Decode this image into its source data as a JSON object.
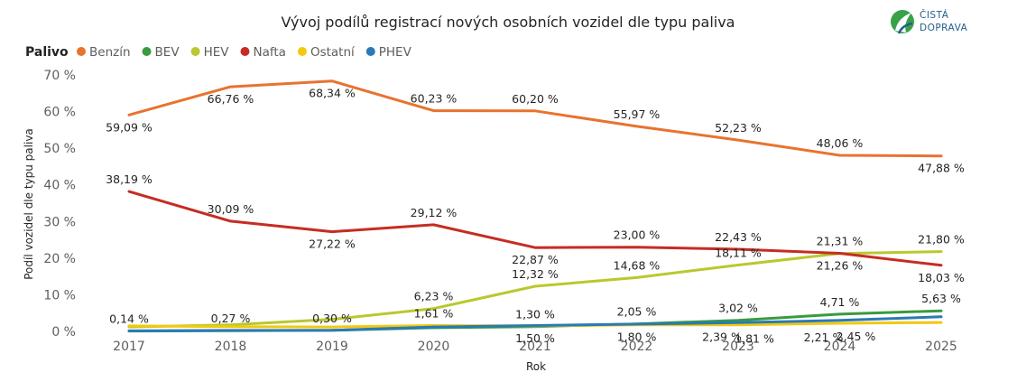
{
  "logo": {
    "line1": "ČISTÁ",
    "line2": "DOPRAVA"
  },
  "chart_data": {
    "type": "line",
    "title": "Vývoj podílů registrací nových osobních vozidel dle typu paliva",
    "xlabel": "Rok",
    "ylabel": "Podíl vozidel dle typu paliva",
    "legend_title": "Palivo",
    "legend_position": "top-left",
    "grid": false,
    "ylim": [
      0,
      70
    ],
    "y_ticks": [
      "0 %",
      "10 %",
      "20 %",
      "30 %",
      "40 %",
      "50 %",
      "60 %",
      "70 %"
    ],
    "categories": [
      "2017",
      "2018",
      "2019",
      "2020",
      "2021",
      "2022",
      "2023",
      "2024",
      "2025"
    ],
    "series": [
      {
        "name": "Benzín",
        "color": "#E8732F",
        "values": [
          59.09,
          66.76,
          68.34,
          60.23,
          60.2,
          55.97,
          52.23,
          48.06,
          47.88
        ]
      },
      {
        "name": "BEV",
        "color": "#3A9A3E",
        "values": [
          0.1,
          0.2,
          0.3,
          1.0,
          1.3,
          2.05,
          3.02,
          4.71,
          5.63
        ]
      },
      {
        "name": "HEV",
        "color": "#B9C82E",
        "values": [
          1.2,
          1.8,
          3.3,
          6.23,
          12.32,
          14.68,
          18.11,
          21.26,
          21.8
        ]
      },
      {
        "name": "Nafta",
        "color": "#C62C24",
        "values": [
          38.19,
          30.09,
          27.22,
          29.12,
          22.87,
          23.0,
          22.43,
          21.31,
          18.03
        ]
      },
      {
        "name": "Ostatní",
        "color": "#F2C811",
        "values": [
          1.5,
          1.3,
          1.2,
          1.61,
          1.5,
          1.8,
          1.81,
          2.21,
          2.45
        ]
      },
      {
        "name": "PHEV",
        "color": "#2A7AB8",
        "values": [
          0.14,
          0.27,
          0.3,
          1.2,
          1.6,
          2.0,
          2.39,
          3.0,
          4.0
        ]
      }
    ],
    "data_labels": [
      {
        "text": "59,09 %",
        "year": "2017",
        "value": 59.09,
        "place": "below"
      },
      {
        "text": "66,76 %",
        "year": "2018",
        "value": 66.76,
        "place": "below"
      },
      {
        "text": "68,34 %",
        "year": "2019",
        "value": 68.34,
        "place": "below"
      },
      {
        "text": "60,23 %",
        "year": "2020",
        "value": 60.23,
        "place": "above"
      },
      {
        "text": "60,20 %",
        "year": "2021",
        "value": 60.2,
        "place": "above"
      },
      {
        "text": "55,97 %",
        "year": "2022",
        "value": 55.97,
        "place": "above"
      },
      {
        "text": "52,23 %",
        "year": "2023",
        "value": 52.23,
        "place": "above"
      },
      {
        "text": "48,06 %",
        "year": "2024",
        "value": 48.06,
        "place": "above"
      },
      {
        "text": "47,88 %",
        "year": "2025",
        "value": 47.88,
        "place": "below"
      },
      {
        "text": "38,19 %",
        "year": "2017",
        "value": 38.19,
        "place": "above"
      },
      {
        "text": "30,09 %",
        "year": "2018",
        "value": 30.09,
        "place": "above"
      },
      {
        "text": "27,22 %",
        "year": "2019",
        "value": 27.22,
        "place": "below"
      },
      {
        "text": "29,12 %",
        "year": "2020",
        "value": 29.12,
        "place": "above"
      },
      {
        "text": "22,87 %",
        "year": "2021",
        "value": 22.87,
        "place": "below"
      },
      {
        "text": "23,00 %",
        "year": "2022",
        "value": 23.0,
        "place": "above"
      },
      {
        "text": "22,43 %",
        "year": "2023",
        "value": 22.43,
        "place": "above"
      },
      {
        "text": "21,31 %",
        "year": "2024",
        "value": 21.31,
        "place": "above"
      },
      {
        "text": "18,03 %",
        "year": "2025",
        "value": 18.03,
        "place": "below"
      },
      {
        "text": "12,32 %",
        "year": "2021",
        "value": 12.32,
        "place": "above"
      },
      {
        "text": "14,68 %",
        "year": "2022",
        "value": 14.68,
        "place": "above"
      },
      {
        "text": "18,11 %",
        "year": "2023",
        "value": 18.11,
        "place": "above"
      },
      {
        "text": "21,26 %",
        "year": "2024",
        "value": 21.26,
        "place": "below"
      },
      {
        "text": "21,80 %",
        "year": "2025",
        "value": 21.8,
        "place": "above"
      },
      {
        "text": "6,23 %",
        "year": "2020",
        "value": 6.23,
        "place": "above"
      },
      {
        "text": "0,14 %",
        "year": "2017",
        "value": 0.14,
        "place": "above"
      },
      {
        "text": "0,27 %",
        "year": "2018",
        "value": 0.27,
        "place": "above"
      },
      {
        "text": "0,30 %",
        "year": "2019",
        "value": 0.3,
        "place": "above"
      },
      {
        "text": "1,61 %",
        "year": "2020",
        "value": 1.61,
        "place": "above"
      },
      {
        "text": "1,30 %",
        "year": "2021",
        "value": 1.3,
        "place": "above"
      },
      {
        "text": "1,50 %",
        "year": "2021",
        "value": 1.5,
        "place": "below"
      },
      {
        "text": "2,05 %",
        "year": "2022",
        "value": 2.05,
        "place": "above"
      },
      {
        "text": "1,80 %",
        "year": "2022",
        "value": 1.8,
        "place": "below"
      },
      {
        "text": "3,02 %",
        "year": "2023",
        "value": 3.02,
        "place": "above"
      },
      {
        "text": "2,39 %",
        "year": "2023",
        "value": 2.39,
        "place": "below-left"
      },
      {
        "text": "1,81 %",
        "year": "2023",
        "value": 1.81,
        "place": "below-right"
      },
      {
        "text": "4,71 %",
        "year": "2024",
        "value": 4.71,
        "place": "above"
      },
      {
        "text": "2,21 %",
        "year": "2024",
        "value": 2.21,
        "place": "below-left"
      },
      {
        "text": "2,45 %",
        "year": "2024",
        "value": 2.45,
        "place": "below-right"
      },
      {
        "text": "5,63 %",
        "year": "2025",
        "value": 5.63,
        "place": "above"
      }
    ]
  }
}
